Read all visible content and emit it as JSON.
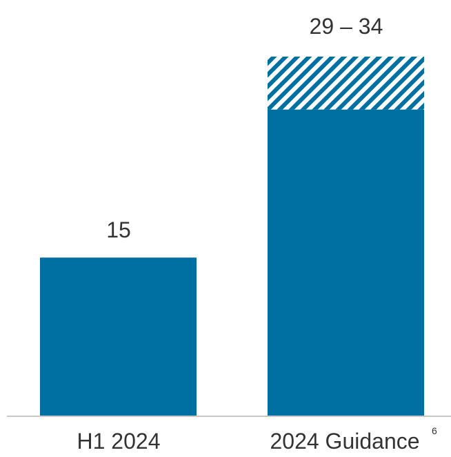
{
  "chart_data": {
    "type": "bar",
    "stacked": true,
    "categories": [
      "H1 2024",
      "2024 Guidance"
    ],
    "category_footnotes": [
      "",
      "6"
    ],
    "series": [
      {
        "values": [
          15,
          29
        ],
        "color": "#0070a2",
        "pattern": "solid"
      },
      {
        "values": [
          0,
          5
        ],
        "color": "#0070a2",
        "pattern": "diagonal-hatch"
      }
    ],
    "data_labels": [
      "15",
      "29 – 34"
    ],
    "ylim": [
      0,
      34
    ],
    "title": "",
    "xlabel": "",
    "ylabel": "",
    "grid": false,
    "legend": "none",
    "baseline_color": "#c8c8c8"
  }
}
